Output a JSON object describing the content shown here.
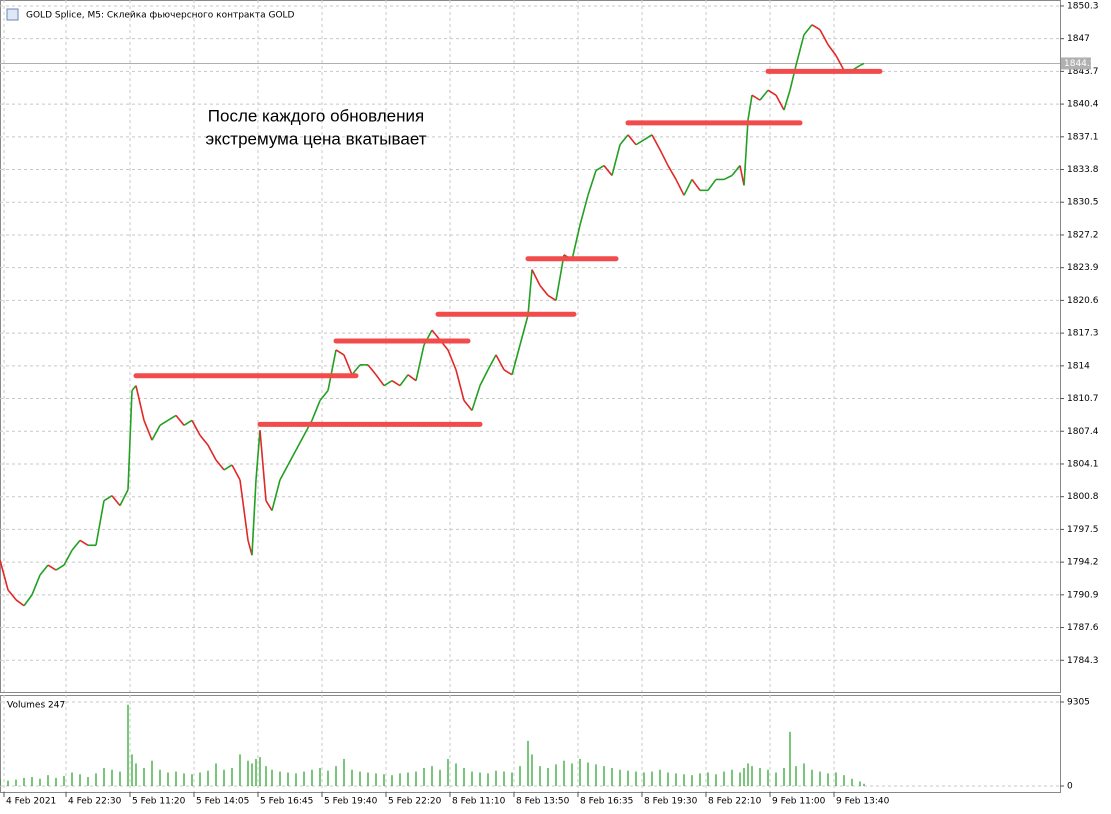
{
  "chart_data": [
    {
      "type": "line",
      "title": "GOLD Splice, M5:  Склейка фьючерсного контракта GOLD",
      "annotation": [
        "После каждого обновления",
        "экстремума цена вкатывает"
      ],
      "x": [
        0,
        4,
        8,
        12,
        16,
        20,
        24,
        28,
        32,
        36,
        40,
        44,
        48,
        52,
        56,
        60,
        64,
        66,
        68,
        72,
        76,
        80,
        84,
        88,
        92,
        96,
        100,
        104,
        108,
        112,
        116,
        120,
        124,
        126,
        128,
        130,
        133,
        136,
        140,
        144,
        148,
        152,
        156,
        160,
        164,
        168,
        172,
        176,
        180,
        184,
        188,
        192,
        196,
        200,
        204,
        208,
        212,
        216,
        220,
        224,
        228,
        232,
        236,
        240,
        244,
        248,
        252,
        256,
        260,
        264,
        266,
        270,
        274,
        278,
        282,
        286,
        290,
        294,
        298,
        302,
        306,
        310,
        314,
        318,
        322,
        326,
        330,
        334,
        338,
        342,
        346,
        350,
        354,
        358,
        362,
        366,
        370,
        372,
        374,
        376,
        380,
        384,
        388,
        392,
        395,
        398,
        402,
        406,
        410,
        414,
        418,
        422,
        426,
        430,
        432
      ],
      "series": [
        {
          "name": "GOLD",
          "up_color": "#22a022",
          "down_color": "#e02828",
          "values": [
            1794.4,
            1791.4,
            1790.4,
            1789.8,
            1790.9,
            1792.9,
            1793.9,
            1793.4,
            1793.9,
            1795.4,
            1796.4,
            1795.9,
            1795.9,
            1800.4,
            1800.9,
            1799.9,
            1801.5,
            1811.5,
            1812.0,
            1808.5,
            1806.5,
            1808.0,
            1808.5,
            1809.0,
            1808.0,
            1808.5,
            1807.0,
            1806.0,
            1804.5,
            1803.5,
            1804.0,
            1802.5,
            1796.4,
            1794.9,
            1802.5,
            1807.5,
            1800.4,
            1799.4,
            1802.5,
            1804.0,
            1805.5,
            1807.0,
            1808.5,
            1810.5,
            1811.5,
            1815.6,
            1815.1,
            1813.1,
            1814.1,
            1814.1,
            1813.1,
            1812.0,
            1812.5,
            1812.0,
            1813.1,
            1812.5,
            1816.1,
            1817.6,
            1816.6,
            1815.6,
            1813.6,
            1810.5,
            1809.5,
            1812.0,
            1813.6,
            1815.1,
            1813.6,
            1813.1,
            1816.1,
            1819.1,
            1823.7,
            1822.1,
            1821.1,
            1820.6,
            1825.2,
            1824.7,
            1828.2,
            1831.2,
            1833.7,
            1834.2,
            1833.2,
            1836.3,
            1837.3,
            1836.3,
            1836.8,
            1837.3,
            1835.8,
            1834.2,
            1832.8,
            1831.2,
            1832.8,
            1831.7,
            1831.7,
            1832.8,
            1832.8,
            1833.2,
            1834.2,
            1832.2,
            1838.8,
            1841.3,
            1840.8,
            1841.8,
            1841.3,
            1839.8,
            1841.8,
            1844.3,
            1847.4,
            1848.4,
            1847.9,
            1846.4,
            1845.3,
            1843.8,
            1843.8,
            1844.3,
            1844.5
          ]
        }
      ],
      "levels": {
        "color": "#f24b4b",
        "items": [
          {
            "price": 1813.0,
            "x_start": 68,
            "x_end": 178
          },
          {
            "price": 1808.1,
            "x_start": 130,
            "x_end": 240
          },
          {
            "price": 1816.5,
            "x_start": 168,
            "x_end": 234
          },
          {
            "price": 1819.2,
            "x_start": 219,
            "x_end": 287
          },
          {
            "price": 1824.8,
            "x_start": 264,
            "x_end": 308
          },
          {
            "price": 1838.5,
            "x_start": 314,
            "x_end": 400
          },
          {
            "price": 1843.7,
            "x_start": 384,
            "x_end": 440
          }
        ]
      },
      "current_price": 1844.5,
      "xlim": [
        0,
        530
      ],
      "ylim": [
        1781.1,
        1850.9
      ],
      "yticks": [
        1850.3,
        1847.0,
        1843.7,
        1840.4,
        1837.1,
        1833.8,
        1830.5,
        1827.2,
        1823.9,
        1820.6,
        1817.3,
        1814.0,
        1810.7,
        1807.4,
        1804.1,
        1800.8,
        1797.5,
        1794.2,
        1790.9,
        1787.6,
        1784.3
      ],
      "grid": true
    },
    {
      "type": "bar",
      "title": "Volumes 247",
      "color": "#22a022",
      "x": [
        0,
        4,
        8,
        12,
        16,
        20,
        24,
        28,
        32,
        36,
        40,
        44,
        48,
        52,
        56,
        60,
        64,
        66,
        68,
        72,
        76,
        80,
        84,
        88,
        92,
        96,
        100,
        104,
        108,
        112,
        116,
        120,
        124,
        126,
        128,
        130,
        133,
        136,
        140,
        144,
        148,
        152,
        156,
        160,
        164,
        168,
        172,
        176,
        180,
        184,
        188,
        192,
        196,
        200,
        204,
        208,
        212,
        216,
        220,
        224,
        228,
        232,
        236,
        240,
        244,
        248,
        252,
        256,
        260,
        264,
        266,
        270,
        274,
        278,
        282,
        286,
        290,
        294,
        298,
        302,
        306,
        310,
        314,
        318,
        322,
        326,
        330,
        334,
        338,
        342,
        346,
        350,
        354,
        358,
        362,
        366,
        370,
        372,
        374,
        376,
        380,
        384,
        388,
        392,
        395,
        398,
        402,
        406,
        410,
        414,
        418,
        422,
        426,
        430,
        432
      ],
      "values": [
        800,
        600,
        700,
        900,
        1000,
        800,
        1200,
        900,
        1100,
        1500,
        1300,
        1000,
        1400,
        2000,
        1800,
        1600,
        9000,
        3500,
        2500,
        2000,
        2800,
        1800,
        1500,
        1600,
        1400,
        1300,
        1500,
        1700,
        2500,
        1800,
        2000,
        3500,
        2800,
        2500,
        3000,
        3200,
        2200,
        1800,
        1600,
        1500,
        1400,
        1600,
        1800,
        2000,
        1700,
        2200,
        3000,
        1800,
        1600,
        1500,
        1400,
        1300,
        1200,
        1400,
        1500,
        1600,
        2000,
        2200,
        1800,
        3000,
        2500,
        2000,
        1600,
        1500,
        1400,
        1700,
        1600,
        1500,
        2200,
        5000,
        3500,
        2200,
        2000,
        2400,
        2800,
        2500,
        3000,
        2600,
        2400,
        2200,
        2000,
        1800,
        1700,
        1600,
        1500,
        1600,
        1800,
        1500,
        1400,
        1300,
        1200,
        1400,
        1500,
        1300,
        1600,
        1800,
        1500,
        2000,
        2500,
        2200,
        2000,
        1800,
        1500,
        2000,
        6000,
        2200,
        2500,
        1800,
        1600,
        1400,
        1500,
        1200,
        800,
        500,
        247
      ],
      "xlim": [
        0,
        530
      ],
      "ylim": [
        -665,
        10080
      ],
      "yticks": [
        9305,
        0
      ],
      "xticks": [
        {
          "value": 2,
          "label": "4 Feb 2021"
        },
        {
          "value": 33,
          "label": "4 Feb 22:30"
        },
        {
          "value": 65,
          "label": "5 Feb 11:20"
        },
        {
          "value": 97,
          "label": "5 Feb 14:05"
        },
        {
          "value": 129,
          "label": "5 Feb 16:45"
        },
        {
          "value": 161,
          "label": "5 Feb 19:40"
        },
        {
          "value": 193,
          "label": "5 Feb 22:20"
        },
        {
          "value": 225,
          "label": "8 Feb 11:10"
        },
        {
          "value": 257,
          "label": "8 Feb 13:50"
        },
        {
          "value": 289,
          "label": "8 Feb 16:35"
        },
        {
          "value": 321,
          "label": "8 Feb 19:30"
        },
        {
          "value": 353,
          "label": "8 Feb 22:10"
        },
        {
          "value": 385,
          "label": "9 Feb 11:00"
        },
        {
          "value": 417,
          "label": "9 Feb 13:40"
        }
      ],
      "grid": true
    }
  ]
}
